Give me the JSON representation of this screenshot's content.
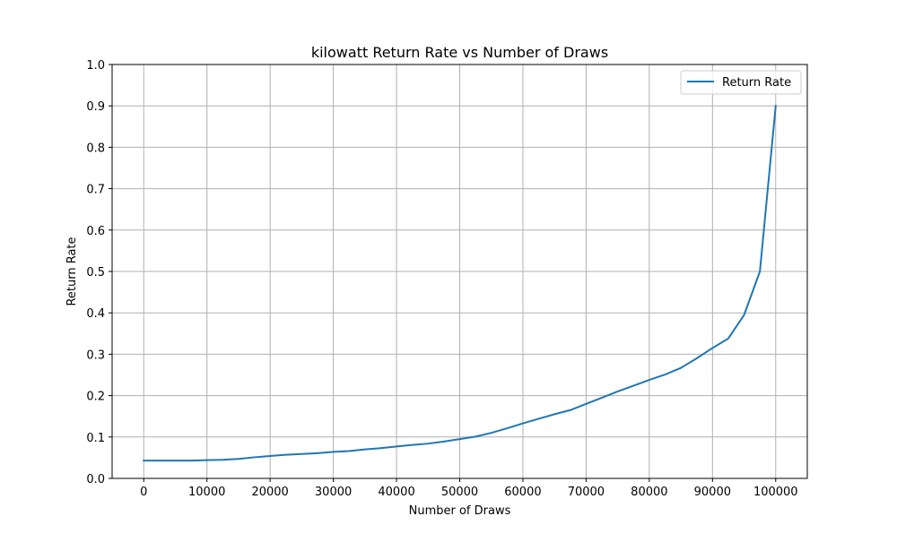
{
  "chart_data": {
    "type": "line",
    "title": "kilowatt Return Rate vs Number of Draws",
    "xlabel": "Number of Draws",
    "ylabel": "Return Rate",
    "xlim": [
      -5000,
      105000
    ],
    "ylim": [
      0,
      1.0
    ],
    "xticks": [
      0,
      10000,
      20000,
      30000,
      40000,
      50000,
      60000,
      70000,
      80000,
      90000,
      100000
    ],
    "xtick_labels": [
      "0",
      "10000",
      "20000",
      "30000",
      "40000",
      "50000",
      "60000",
      "70000",
      "80000",
      "90000",
      "100000"
    ],
    "yticks": [
      0,
      0.1,
      0.2,
      0.3,
      0.4,
      0.5,
      0.6,
      0.7,
      0.8,
      0.9,
      1.0
    ],
    "ytick_labels": [
      "0.0",
      "0.1",
      "0.2",
      "0.3",
      "0.4",
      "0.5",
      "0.6",
      "0.7",
      "0.8",
      "0.9",
      "1.0"
    ],
    "grid": true,
    "legend_position": "top-right",
    "series": [
      {
        "name": "Return Rate",
        "color": "#1f77b4",
        "x": [
          0,
          2500,
          5000,
          7500,
          10000,
          12500,
          15000,
          17500,
          20000,
          22500,
          25000,
          27500,
          30000,
          32500,
          35000,
          37500,
          40000,
          42500,
          45000,
          47500,
          50000,
          52500,
          55000,
          57500,
          60000,
          62500,
          65000,
          67500,
          70000,
          72500,
          75000,
          77500,
          80000,
          82500,
          85000,
          87500,
          90000,
          92500,
          95000,
          97500,
          100000
        ],
        "y": [
          0.043,
          0.043,
          0.043,
          0.043,
          0.044,
          0.045,
          0.047,
          0.051,
          0.054,
          0.057,
          0.059,
          0.061,
          0.064,
          0.066,
          0.07,
          0.073,
          0.077,
          0.081,
          0.084,
          0.089,
          0.095,
          0.101,
          0.11,
          0.121,
          0.133,
          0.144,
          0.155,
          0.165,
          0.18,
          0.195,
          0.21,
          0.224,
          0.238,
          0.251,
          0.267,
          0.29,
          0.315,
          0.338,
          0.395,
          0.5,
          0.9
        ]
      }
    ]
  }
}
